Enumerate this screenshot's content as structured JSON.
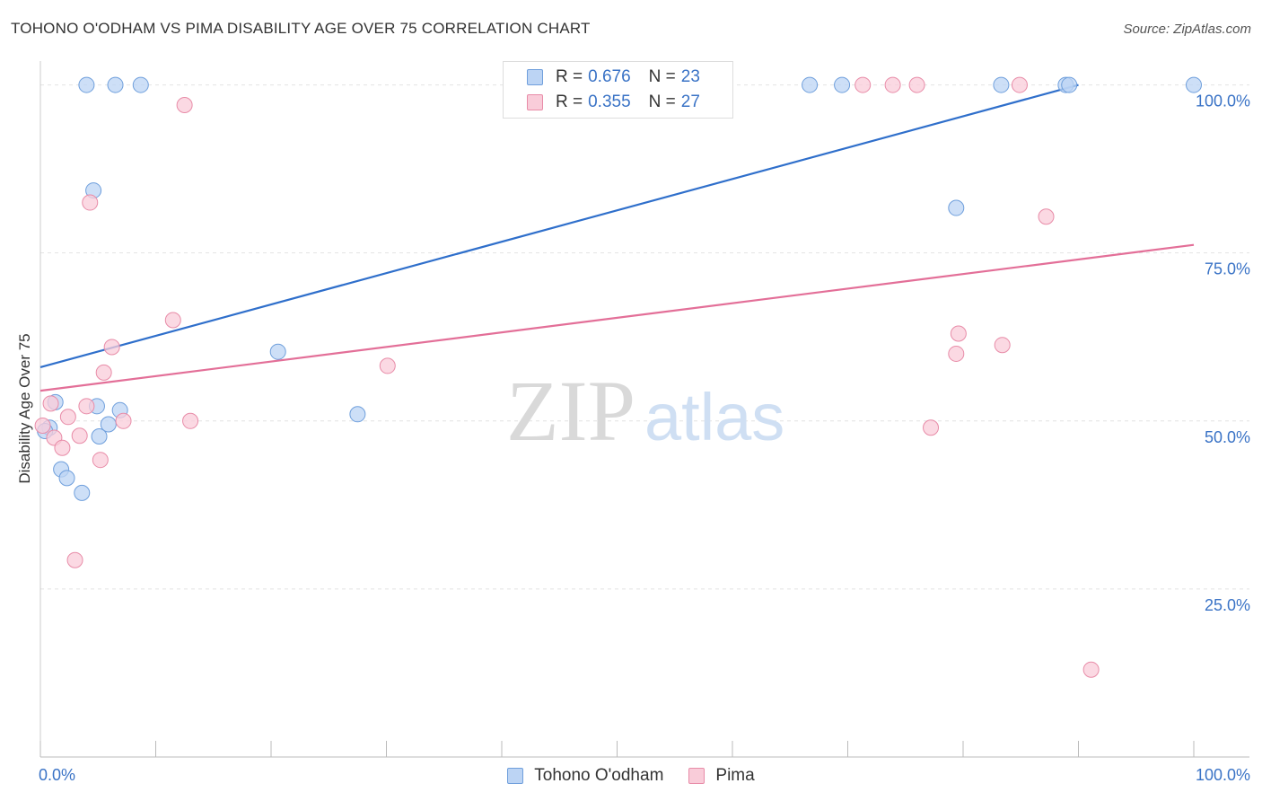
{
  "title": "TOHONO O'ODHAM VS PIMA DISABILITY AGE OVER 75 CORRELATION CHART",
  "source": "Source: ZipAtlas.com",
  "watermark": {
    "zip": "ZIP",
    "atlas": "atlas"
  },
  "legend": {
    "r_label": "R =",
    "n_label": "N =",
    "rows": [
      {
        "r": "0.676",
        "n": "23"
      },
      {
        "r": "0.355",
        "n": "27"
      }
    ]
  },
  "colors": {
    "blue_fill": "#bcd4f4",
    "blue_stroke": "#6f9fdc",
    "blue_line": "#2f6fcb",
    "pink_fill": "#f9ccd9",
    "pink_stroke": "#e88ca8",
    "pink_line": "#e36f98",
    "axis_label": "#3a73c6",
    "grid": "#e2e2e2"
  },
  "chart_data": {
    "type": "scatter",
    "title": "TOHONO O'ODHAM VS PIMA DISABILITY AGE OVER 75 CORRELATION CHART",
    "xlabel": "",
    "ylabel": "Disability Age Over 75",
    "xlim": [
      0,
      100
    ],
    "ylim": [
      0,
      102
    ],
    "x_tick_labels": [
      "0.0%",
      "100.0%"
    ],
    "y_ticks": [
      25,
      50,
      75,
      100
    ],
    "y_tick_labels": [
      "25.0%",
      "50.0%",
      "75.0%",
      "100.0%"
    ],
    "grid": true,
    "legend_position": "top-center",
    "series": [
      {
        "name": "Tohono O'odham",
        "r": 0.676,
        "n": 23,
        "trend": {
          "x": [
            0,
            90
          ],
          "y": [
            58.0,
            100.0
          ]
        },
        "points": [
          {
            "x": 4.0,
            "y": 100.0
          },
          {
            "x": 6.5,
            "y": 100.0
          },
          {
            "x": 8.7,
            "y": 100.0
          },
          {
            "x": 66.7,
            "y": 100.0
          },
          {
            "x": 69.5,
            "y": 100.0
          },
          {
            "x": 83.3,
            "y": 100.0
          },
          {
            "x": 88.9,
            "y": 100.0
          },
          {
            "x": 89.2,
            "y": 100.0
          },
          {
            "x": 100.0,
            "y": 100.0
          },
          {
            "x": 4.6,
            "y": 84.3
          },
          {
            "x": 79.4,
            "y": 81.7
          },
          {
            "x": 20.6,
            "y": 60.3
          },
          {
            "x": 1.3,
            "y": 52.8
          },
          {
            "x": 4.9,
            "y": 52.2
          },
          {
            "x": 6.9,
            "y": 51.6
          },
          {
            "x": 27.5,
            "y": 51.0
          },
          {
            "x": 5.9,
            "y": 49.5
          },
          {
            "x": 0.8,
            "y": 49.0
          },
          {
            "x": 0.4,
            "y": 48.5
          },
          {
            "x": 5.1,
            "y": 47.7
          },
          {
            "x": 1.8,
            "y": 42.8
          },
          {
            "x": 2.3,
            "y": 41.5
          },
          {
            "x": 3.6,
            "y": 39.3
          }
        ]
      },
      {
        "name": "Pima",
        "r": 0.355,
        "n": 27,
        "trend": {
          "x": [
            0,
            100
          ],
          "y": [
            54.5,
            76.2
          ]
        },
        "points": [
          {
            "x": 71.3,
            "y": 100.0
          },
          {
            "x": 73.9,
            "y": 100.0
          },
          {
            "x": 76.0,
            "y": 100.0
          },
          {
            "x": 84.9,
            "y": 100.0
          },
          {
            "x": 12.5,
            "y": 97.0
          },
          {
            "x": 4.3,
            "y": 82.5
          },
          {
            "x": 87.2,
            "y": 80.4
          },
          {
            "x": 11.5,
            "y": 65.0
          },
          {
            "x": 79.6,
            "y": 63.0
          },
          {
            "x": 83.4,
            "y": 61.3
          },
          {
            "x": 6.2,
            "y": 61.0
          },
          {
            "x": 79.4,
            "y": 60.0
          },
          {
            "x": 30.1,
            "y": 58.2
          },
          {
            "x": 5.5,
            "y": 57.2
          },
          {
            "x": 0.9,
            "y": 52.6
          },
          {
            "x": 4.0,
            "y": 52.2
          },
          {
            "x": 2.4,
            "y": 50.6
          },
          {
            "x": 7.2,
            "y": 50.0
          },
          {
            "x": 13.0,
            "y": 50.0
          },
          {
            "x": 0.2,
            "y": 49.3
          },
          {
            "x": 77.2,
            "y": 49.0
          },
          {
            "x": 3.4,
            "y": 47.8
          },
          {
            "x": 1.2,
            "y": 47.5
          },
          {
            "x": 1.9,
            "y": 46.0
          },
          {
            "x": 5.2,
            "y": 44.2
          },
          {
            "x": 3.0,
            "y": 29.3
          },
          {
            "x": 91.1,
            "y": 13.0
          }
        ]
      }
    ]
  }
}
